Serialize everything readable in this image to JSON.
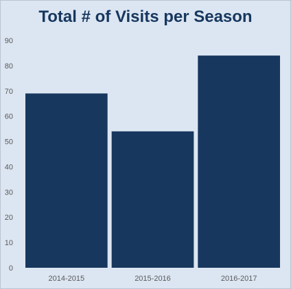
{
  "chart_data": {
    "type": "bar",
    "title": "Total # of Visits per Season",
    "categories": [
      "2014-2015",
      "2015-2016",
      "2016-2017"
    ],
    "values": [
      69,
      54,
      84
    ],
    "xlabel": "",
    "ylabel": "",
    "ylim": [
      0,
      90
    ],
    "yticks": [
      0,
      10,
      20,
      30,
      40,
      50,
      60,
      70,
      80,
      90
    ],
    "grid": false,
    "legend": "none",
    "bar_color": "#17375e",
    "background_color": "#dce6f2"
  }
}
